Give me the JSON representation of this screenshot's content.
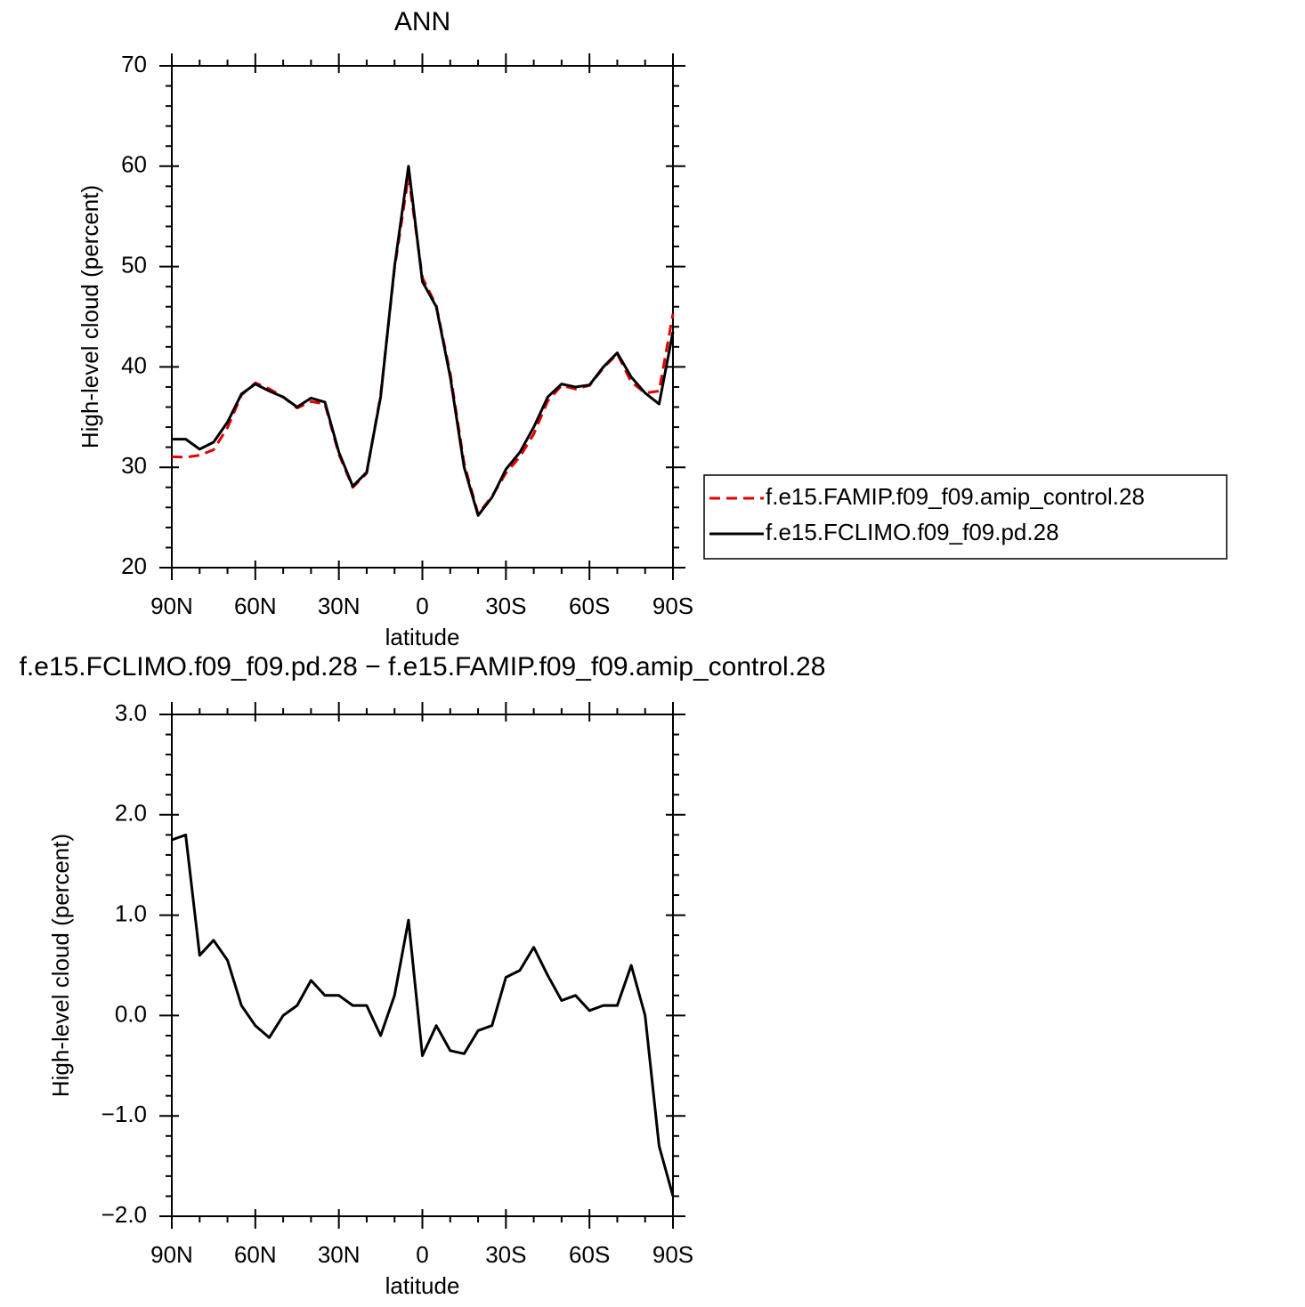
{
  "chart_data": [
    {
      "type": "line",
      "title": "ANN",
      "xlabel": "latitude",
      "ylabel": "High-level cloud (percent)",
      "x": [
        90,
        85,
        80,
        75,
        70,
        65,
        60,
        55,
        50,
        45,
        40,
        35,
        30,
        25,
        20,
        15,
        10,
        5,
        0,
        -5,
        -10,
        -15,
        -20,
        -25,
        -30,
        -35,
        -40,
        -45,
        -50,
        -55,
        -60,
        -65,
        -70,
        -75,
        -80,
        -85,
        -90
      ],
      "series": [
        {
          "name": "f.e15.FAMIP.f09_f09.amip_control.28",
          "color": "#e00000",
          "style": "dashed",
          "values": [
            31.05,
            31.0,
            31.2,
            31.75,
            33.95,
            37.2,
            38.4,
            37.82,
            37.0,
            35.9,
            36.55,
            36.3,
            31.3,
            28.0,
            29.4,
            37.2,
            49.8,
            59.05,
            48.9,
            46.1,
            39.35,
            30.38,
            25.35,
            27.1,
            29.42,
            31.05,
            33.32,
            36.6,
            38.15,
            37.8,
            38.15,
            39.9,
            41.3,
            38.5,
            37.4,
            37.6,
            45.3
          ]
        },
        {
          "name": "f.e15.FCLIMO.f09_f09.pd.28",
          "color": "#000000",
          "style": "solid",
          "values": [
            32.8,
            32.8,
            31.8,
            32.5,
            34.5,
            37.3,
            38.3,
            37.6,
            37.0,
            36.0,
            36.9,
            36.5,
            31.5,
            28.1,
            29.5,
            37.0,
            50.0,
            60.0,
            48.5,
            46.0,
            39.0,
            30.0,
            25.2,
            27.0,
            29.8,
            31.5,
            34.0,
            37.0,
            38.3,
            38.0,
            38.2,
            40.0,
            41.4,
            39.0,
            37.4,
            36.3,
            43.5
          ]
        }
      ],
      "xlim": [
        90,
        -90
      ],
      "xticks": [
        {
          "value": 90,
          "label": "90N"
        },
        {
          "value": 60,
          "label": "60N"
        },
        {
          "value": 30,
          "label": "30N"
        },
        0,
        {
          "value": -30,
          "label": "30S"
        },
        {
          "value": -60,
          "label": "60S"
        },
        {
          "value": -90,
          "label": "90S"
        }
      ],
      "ylim": [
        20,
        70
      ],
      "yticks": [
        20,
        30,
        40,
        50,
        60,
        70
      ],
      "legend": "right"
    },
    {
      "type": "line",
      "title": "f.e15.FCLIMO.f09_f09.pd.28 − f.e15.FAMIP.f09_f09.amip_control.28",
      "xlabel": "latitude",
      "ylabel": "High-level cloud (percent)",
      "x": [
        90,
        85,
        80,
        75,
        70,
        65,
        60,
        55,
        50,
        45,
        40,
        35,
        30,
        25,
        20,
        15,
        10,
        5,
        0,
        -5,
        -10,
        -15,
        -20,
        -25,
        -30,
        -35,
        -40,
        -45,
        -50,
        -55,
        -60,
        -65,
        -70,
        -75,
        -80,
        -85,
        -90
      ],
      "color": "#000000",
      "values": [
        1.75,
        1.8,
        0.6,
        0.75,
        0.55,
        0.1,
        -0.1,
        -0.22,
        0.0,
        0.1,
        0.35,
        0.2,
        0.2,
        0.1,
        0.1,
        -0.2,
        0.2,
        0.95,
        -0.4,
        -0.1,
        -0.35,
        -0.38,
        -0.15,
        -0.1,
        0.38,
        0.45,
        0.68,
        0.4,
        0.15,
        0.2,
        0.05,
        0.1,
        0.1,
        0.5,
        0.0,
        -1.3,
        -1.8
      ],
      "xlim": [
        90,
        -90
      ],
      "xticks": [
        {
          "value": 90,
          "label": "90N"
        },
        {
          "value": 60,
          "label": "60N"
        },
        {
          "value": 30,
          "label": "30N"
        },
        0,
        {
          "value": -30,
          "label": "30S"
        },
        {
          "value": -60,
          "label": "60S"
        },
        {
          "value": -90,
          "label": "90S"
        }
      ],
      "ylim": [
        -2,
        3
      ],
      "yticks": [
        {
          "value": -2,
          "label": "−2.0"
        },
        {
          "value": -1,
          "label": "−1.0"
        },
        {
          "value": 0,
          "label": "0.0"
        },
        {
          "value": 1,
          "label": "1.0"
        },
        {
          "value": 2,
          "label": "2.0"
        },
        {
          "value": 3,
          "label": "3.0"
        }
      ]
    }
  ]
}
